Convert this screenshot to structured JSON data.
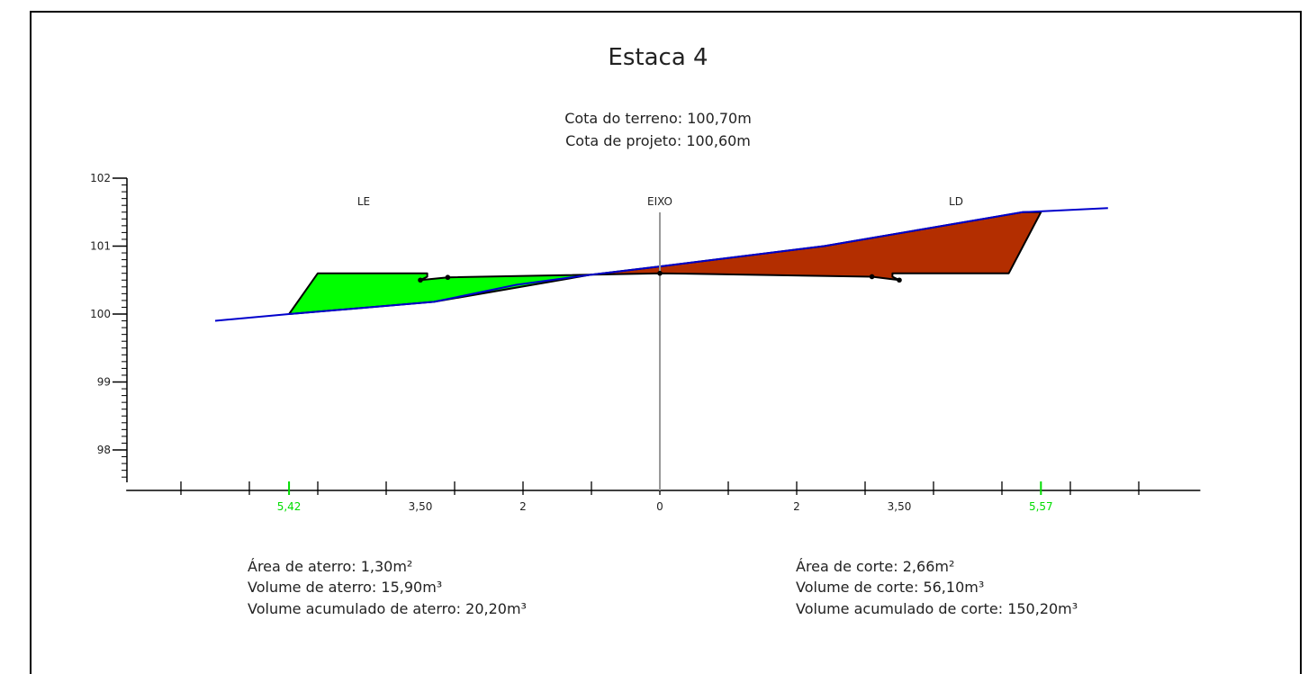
{
  "title": "Estaca 4",
  "cota_terreno": "Cota do terreno: 100,70m",
  "cota_projeto": "Cota de projeto: 100,60m",
  "labels": {
    "left": "LE",
    "axis": "EIXO",
    "right": "LD"
  },
  "y_ticks": [
    "102",
    "101",
    "100",
    "99",
    "98"
  ],
  "x_labels": [
    {
      "text": "5,42",
      "offset": -5.42,
      "highlight": true
    },
    {
      "text": "3,50",
      "offset": -3.5,
      "highlight": false
    },
    {
      "text": "2",
      "offset": -2,
      "highlight": false
    },
    {
      "text": "0",
      "offset": 0,
      "highlight": false
    },
    {
      "text": "2",
      "offset": 2,
      "highlight": false
    },
    {
      "text": "3,50",
      "offset": 3.5,
      "highlight": false
    },
    {
      "text": "5,57",
      "offset": 5.57,
      "highlight": true
    }
  ],
  "left_stats": {
    "area": "Área de aterro: 1,30m²",
    "volume": "Volume de aterro: 15,90m³",
    "acumulado": "Volume acumulado de aterro: 20,20m³"
  },
  "right_stats": {
    "area": "Área de corte: 2,66m²",
    "volume": "Volume de corte: 56,10m³",
    "acumulado": "Volume acumulado de corte: 150,20m³"
  },
  "colors": {
    "fill_aterro": "#00ff00",
    "fill_corte": "#b32e00",
    "terrain": "#0000cc",
    "highlight": "#00dd00",
    "axis_line": "#999999"
  },
  "chart_data": {
    "type": "cross-section",
    "xlim": [
      -7.8,
      7.9
    ],
    "ylim": [
      97.5,
      102
    ],
    "terrain": [
      [
        -6.5,
        99.9
      ],
      [
        -5.42,
        100.0
      ],
      [
        -3.3,
        100.18
      ],
      [
        -2.1,
        100.43
      ],
      [
        -1.0,
        100.58
      ],
      [
        0,
        100.7
      ],
      [
        2.4,
        101.0
      ],
      [
        5.3,
        101.5
      ],
      [
        6.55,
        101.56
      ]
    ],
    "aterro": [
      [
        -5.42,
        100.0
      ],
      [
        -5.0,
        100.6
      ],
      [
        -3.5,
        100.6
      ],
      [
        -3.4,
        100.6
      ],
      [
        -3.4,
        100.55
      ],
      [
        -3.5,
        100.5
      ],
      [
        -3.1,
        100.54
      ],
      [
        -1.0,
        100.58
      ],
      [
        -3.3,
        100.18
      ],
      [
        -5.42,
        100.0
      ]
    ],
    "corte": [
      [
        -1.0,
        100.58
      ],
      [
        0,
        100.6
      ],
      [
        3.1,
        100.55
      ],
      [
        3.5,
        100.5
      ],
      [
        3.4,
        100.55
      ],
      [
        3.4,
        100.6
      ],
      [
        5.1,
        100.6
      ],
      [
        5.57,
        101.5
      ],
      [
        5.3,
        101.5
      ],
      [
        2.4,
        101.0
      ],
      [
        0,
        100.7
      ],
      [
        -1.0,
        100.58
      ]
    ],
    "project_points": [
      [
        -3.5,
        100.5
      ],
      [
        -3.1,
        100.54
      ],
      [
        3.1,
        100.55
      ],
      [
        3.5,
        100.5
      ],
      [
        0,
        100.6
      ]
    ]
  }
}
